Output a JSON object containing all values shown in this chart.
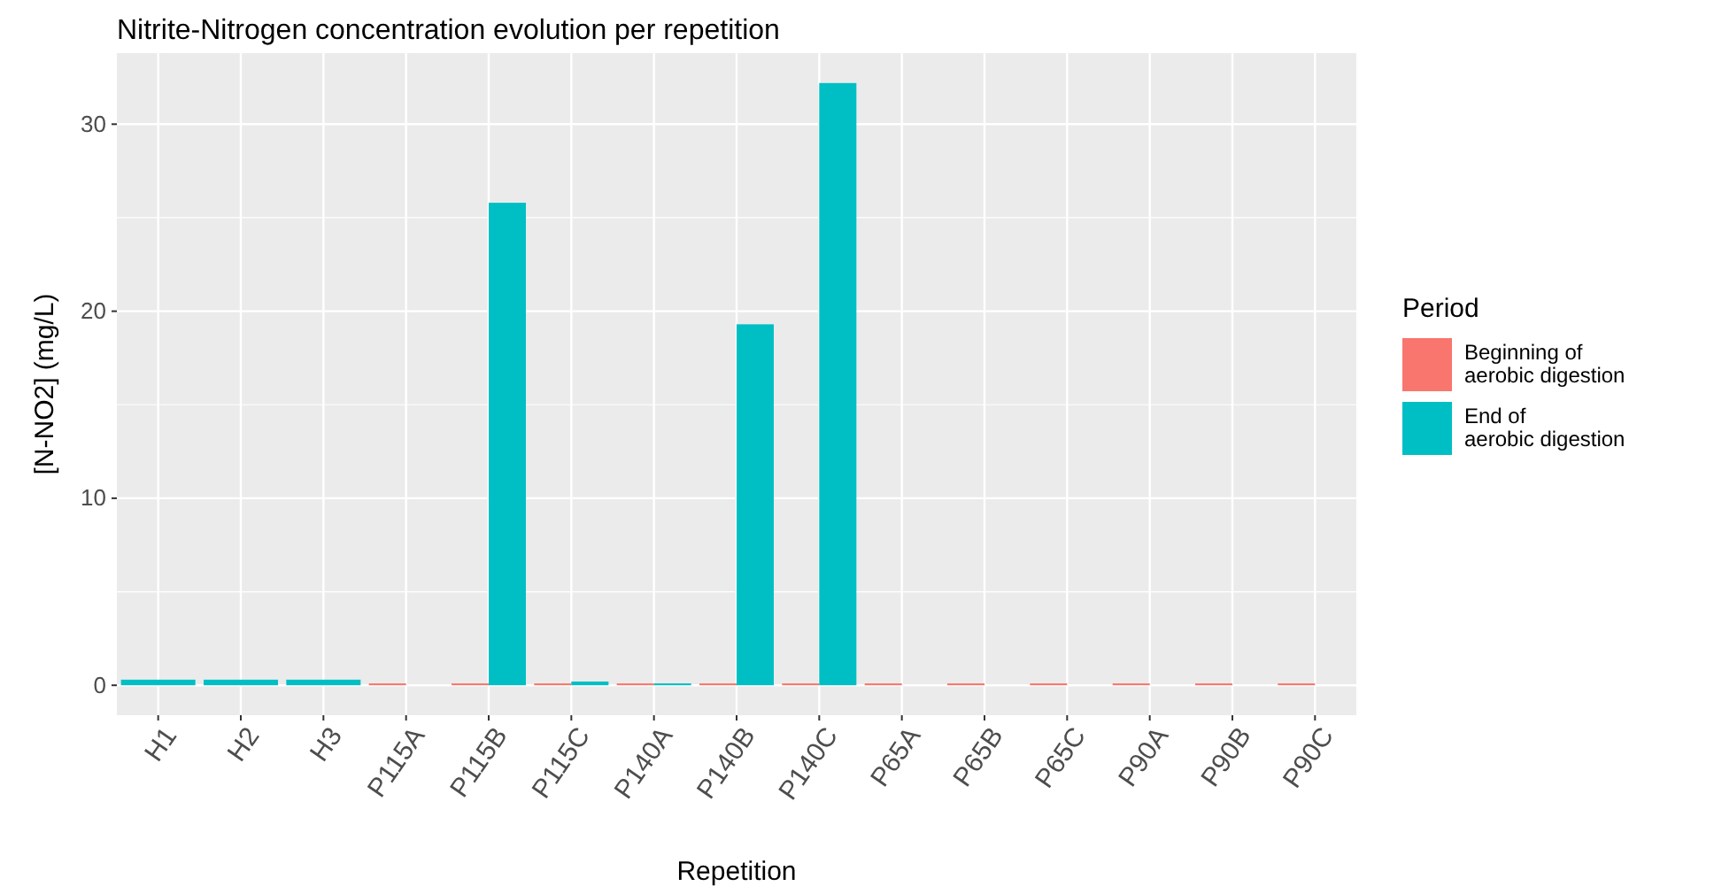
{
  "chart_data": {
    "type": "bar",
    "title": "Nitrite-Nitrogen concentration evolution per repetition",
    "xlabel": "Repetition",
    "ylabel": "[N-NO2] (mg/L)",
    "legend_title": "Period",
    "categories": [
      "H1",
      "H2",
      "H3",
      "P115A",
      "P115B",
      "P115C",
      "P140A",
      "P140B",
      "P140C",
      "P65A",
      "P65B",
      "P65C",
      "P90A",
      "P90B",
      "P90C"
    ],
    "series": [
      {
        "name": "Beginning of aerobic digestion",
        "color": "#f8766d",
        "values": [
          null,
          null,
          null,
          0.1,
          0.1,
          0.1,
          0.1,
          0.1,
          0.1,
          0.1,
          0.1,
          0.1,
          0.1,
          0.1,
          0.1
        ]
      },
      {
        "name": "End of aerobic digestion",
        "color": "#00bfc4",
        "values": [
          0.3,
          0.3,
          0.3,
          0,
          25.8,
          0.2,
          0.1,
          19.3,
          32.2,
          0,
          0,
          0,
          0,
          0,
          0
        ]
      }
    ],
    "ylim": [
      -1.6,
      33.8
    ],
    "yticks": [
      0,
      10,
      20,
      30
    ],
    "grid": true,
    "legend": "right"
  }
}
